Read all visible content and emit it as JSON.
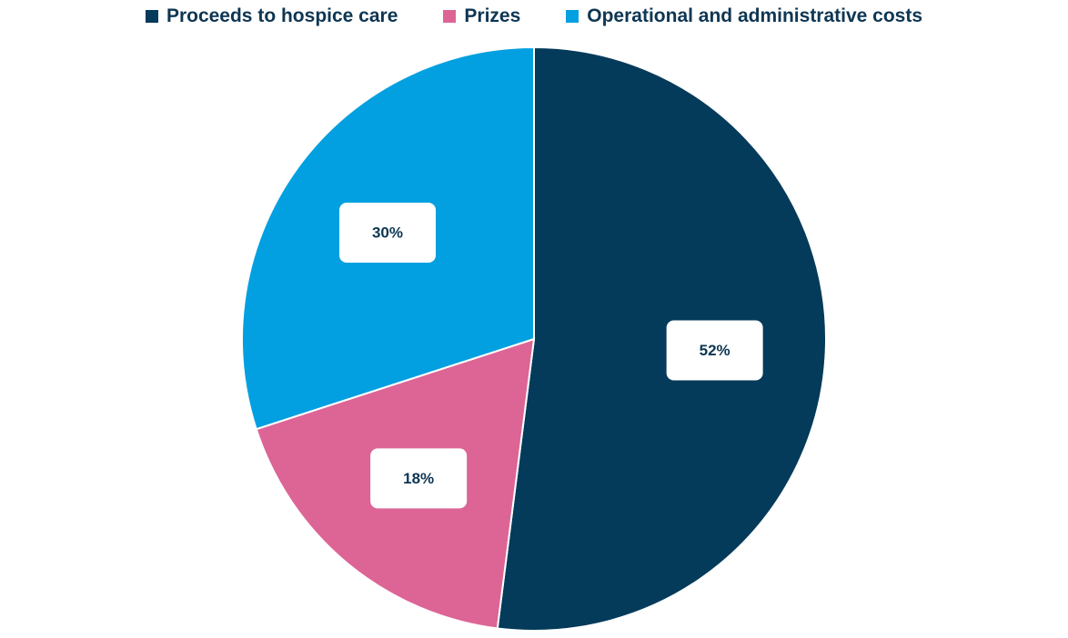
{
  "chart_data": {
    "type": "pie",
    "title": "",
    "legend_position": "top",
    "slices": [
      {
        "name": "Proceeds to hospice care",
        "value": 52,
        "label": "52%",
        "color": "#043a5a"
      },
      {
        "name": "Prizes",
        "value": 18,
        "label": "18%",
        "color": "#dc6596"
      },
      {
        "name": "Operational and administrative costs",
        "value": 30,
        "label": "30%",
        "color": "#02a0e0"
      }
    ]
  }
}
